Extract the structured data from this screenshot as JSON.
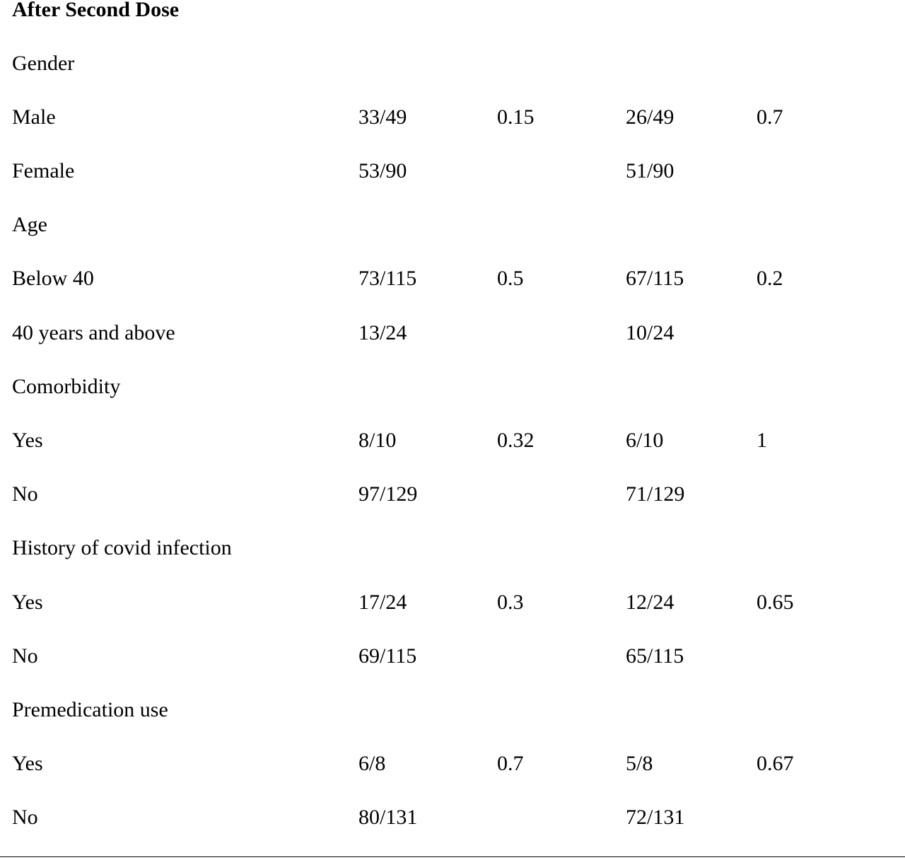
{
  "title": "After Second Dose",
  "rows": [
    {
      "label": "Gender",
      "c1": "",
      "c2": "",
      "c3": "",
      "c4": ""
    },
    {
      "label": "Male",
      "c1": "33/49",
      "c2": "0.15",
      "c3": "26/49",
      "c4": "0.7"
    },
    {
      "label": "Female",
      "c1": "53/90",
      "c2": "",
      "c3": "51/90",
      "c4": ""
    },
    {
      "label": "Age",
      "c1": "",
      "c2": "",
      "c3": "",
      "c4": ""
    },
    {
      "label": "Below 40",
      "c1": "73/115",
      "c2": "0.5",
      "c3": "67/115",
      "c4": "0.2"
    },
    {
      "label": "40 years and above",
      "c1": "13/24",
      "c2": "",
      "c3": "10/24",
      "c4": ""
    },
    {
      "label": "Comorbidity",
      "c1": "",
      "c2": "",
      "c3": "",
      "c4": ""
    },
    {
      "label": "Yes",
      "c1": "8/10",
      "c2": "0.32",
      "c3": "6/10",
      "c4": "1"
    },
    {
      "label": "No",
      "c1": "97/129",
      "c2": "",
      "c3": "71/129",
      "c4": ""
    },
    {
      "label": "History of covid infection",
      "c1": "",
      "c2": "",
      "c3": "",
      "c4": ""
    },
    {
      "label": "Yes",
      "c1": "17/24",
      "c2": "0.3",
      "c3": "12/24",
      "c4": "0.65"
    },
    {
      "label": "No",
      "c1": "69/115",
      "c2": "",
      "c3": "65/115",
      "c4": ""
    },
    {
      "label": "Premedication use",
      "c1": "",
      "c2": "",
      "c3": "",
      "c4": ""
    },
    {
      "label": "Yes",
      "c1": "6/8",
      "c2": "0.7",
      "c3": "5/8",
      "c4": "0.67"
    },
    {
      "label": "No",
      "c1": "80/131",
      "c2": "",
      "c3": "72/131",
      "c4": ""
    }
  ]
}
